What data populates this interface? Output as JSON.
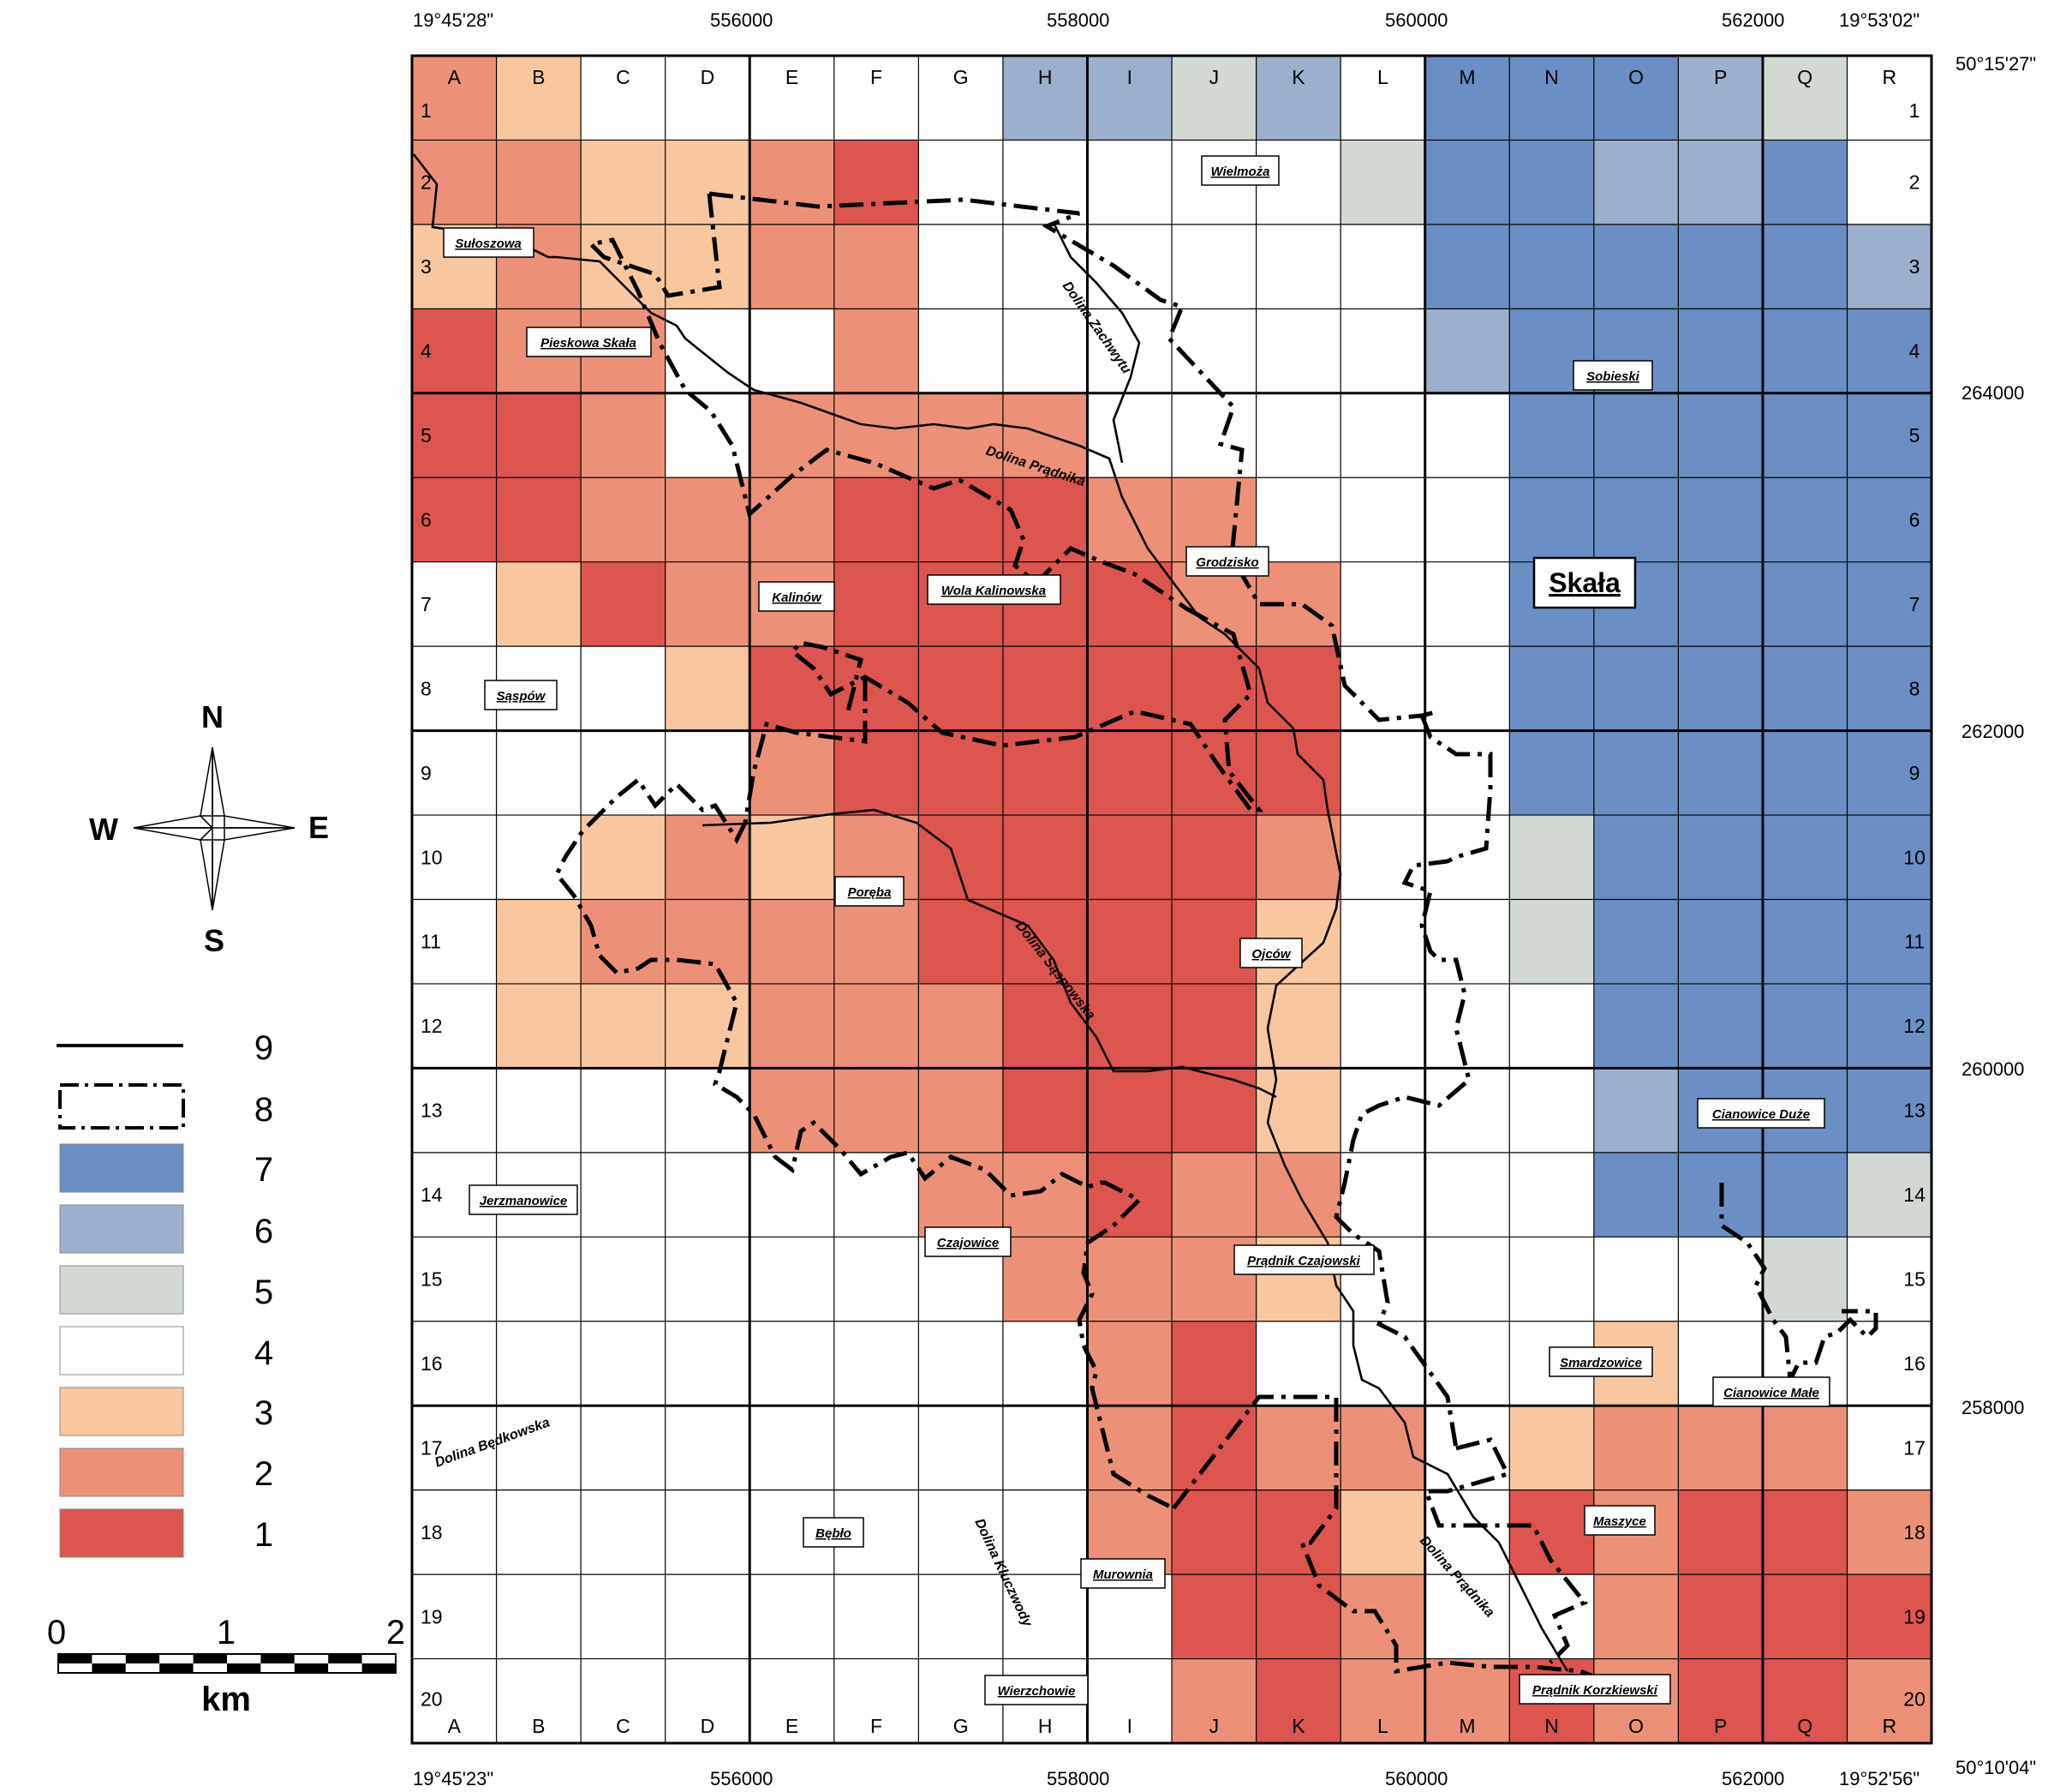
{
  "colors": {
    "class_1": "#dc564f",
    "class_2": "#ec9178",
    "class_3": "#f9c79f",
    "class_4": "#ffffff",
    "class_5": "#d2d9d3",
    "class_6": "#9cb0cd",
    "class_7": "#6b8fc5"
  },
  "columns": [
    "A",
    "B",
    "C",
    "D",
    "E",
    "F",
    "G",
    "H",
    "I",
    "J",
    "K",
    "L",
    "M",
    "N",
    "O",
    "P",
    "Q",
    "R"
  ],
  "rows": [
    "1",
    "2",
    "3",
    "4",
    "5",
    "6",
    "7",
    "8",
    "9",
    "10",
    "11",
    "12",
    "13",
    "14",
    "15",
    "16",
    "17",
    "18",
    "19",
    "20"
  ],
  "cell_classes": [
    "234444466564777654",
    "223321444445776674",
    "323322444444777776",
    "122442444444677777",
    "112422224444477777",
    "112221112244477777",
    "431221111224477777",
    "444311111114477777",
    "444421111114477777",
    "443232111124457777",
    "432222111134457777",
    "433322211134447777",
    "444422211134446777",
    "444444221224447775",
    "444444422234444454",
    "444444442144443444",
    "444444442122432224",
    "444444442113412112",
    "444444444112442111",
    "444444444212212112"
  ],
  "coords": {
    "top_left": "19°45'28\"",
    "top_right": "19°53'02\"",
    "bottom_left": "19°45'23\"",
    "bottom_right": "19°52'56\"",
    "right_top": "50°15'27\"",
    "right_bottom": "50°10'04\"",
    "x_ticks": [
      "556000",
      "558000",
      "560000",
      "562000"
    ],
    "y_ticks": [
      "264000",
      "262000",
      "260000",
      "258000"
    ]
  },
  "places": [
    {
      "name": "Wielmoża"
    },
    {
      "name": "Sułoszowa"
    },
    {
      "name": "Pieskowa Skała"
    },
    {
      "name": "Sobieski"
    },
    {
      "name": "Grodzisko"
    },
    {
      "name": "Kalinów"
    },
    {
      "name": "Wola Kalinowska"
    },
    {
      "name": "Skała"
    },
    {
      "name": "Sąspów"
    },
    {
      "name": "Poręba"
    },
    {
      "name": "Ojców"
    },
    {
      "name": "Cianowice Duże"
    },
    {
      "name": "Jerzmanowice"
    },
    {
      "name": "Czajowice"
    },
    {
      "name": "Prądnik Czajowski"
    },
    {
      "name": "Smardzowice"
    },
    {
      "name": "Cianowice Małe"
    },
    {
      "name": "Maszyce"
    },
    {
      "name": "Bębło"
    },
    {
      "name": "Murownia"
    },
    {
      "name": "Prądnik Korzkiewski"
    },
    {
      "name": "Wierzchowie"
    }
  ],
  "valleys": [
    {
      "name": "Dolina Zachwytu"
    },
    {
      "name": "Dolina Prądnika"
    },
    {
      "name": "Dolina Sąspowska"
    },
    {
      "name": "Dolina Będkowska"
    },
    {
      "name": "Dolina Kluczwody"
    },
    {
      "name": "Dolina Prądnika"
    }
  ],
  "legend": [
    "9",
    "8",
    "7",
    "6",
    "5",
    "4",
    "3",
    "2",
    "1"
  ],
  "compass": {
    "n": "N",
    "s": "S",
    "w": "W",
    "e": "E"
  },
  "scale": {
    "ticks": [
      "0",
      "1",
      "2"
    ],
    "unit": "km"
  }
}
